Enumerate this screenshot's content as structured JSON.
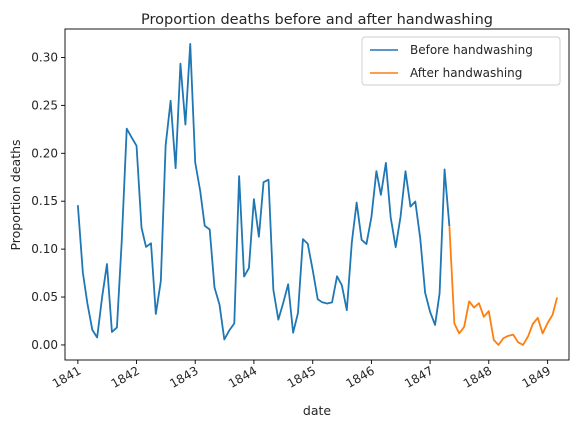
{
  "chart_data": {
    "type": "line",
    "title": "Proportion deaths before and after handwashing",
    "xlabel": "date",
    "ylabel": "Proportion deaths",
    "xlim": [
      "1840-10-13",
      "1849-05-14"
    ],
    "ylim": [
      -0.0157,
      0.3297
    ],
    "yticks": [
      0.0,
      0.05,
      0.1,
      0.15,
      0.2,
      0.25,
      0.3
    ],
    "ytick_labels": [
      "0.00",
      "0.05",
      "0.10",
      "0.15",
      "0.20",
      "0.25",
      "0.30"
    ],
    "xticks": [
      "1841-01-01",
      "1842-01-01",
      "1843-01-01",
      "1844-01-01",
      "1845-01-01",
      "1846-01-01",
      "1847-01-01",
      "1848-01-01",
      "1849-01-01"
    ],
    "xtick_labels": [
      "1841",
      "1842",
      "1843",
      "1844",
      "1845",
      "1846",
      "1847",
      "1848",
      "1849"
    ],
    "legend_position": "top-right",
    "grid": false,
    "series": [
      {
        "name": "Before handwashing",
        "color": "#1f77b4",
        "x": [
          "1841-01-01",
          "1841-02-01",
          "1841-03-01",
          "1841-04-01",
          "1841-05-01",
          "1841-06-01",
          "1841-07-01",
          "1841-08-01",
          "1841-09-01",
          "1841-10-01",
          "1841-11-01",
          "1841-12-01",
          "1842-01-01",
          "1842-02-01",
          "1842-03-01",
          "1842-04-01",
          "1842-05-01",
          "1842-06-01",
          "1842-07-01",
          "1842-08-01",
          "1842-09-01",
          "1842-10-01",
          "1842-11-01",
          "1842-12-01",
          "1843-01-01",
          "1843-02-01",
          "1843-03-01",
          "1843-04-01",
          "1843-05-01",
          "1843-06-01",
          "1843-07-01",
          "1843-08-01",
          "1843-09-01",
          "1843-10-01",
          "1843-11-01",
          "1843-12-01",
          "1844-01-01",
          "1844-02-01",
          "1844-03-01",
          "1844-04-01",
          "1844-05-01",
          "1844-06-01",
          "1844-07-01",
          "1844-08-01",
          "1844-09-01",
          "1844-10-01",
          "1844-11-01",
          "1844-12-01",
          "1845-01-01",
          "1845-02-01",
          "1845-03-01",
          "1845-04-01",
          "1845-05-01",
          "1845-06-01",
          "1845-07-01",
          "1845-08-01",
          "1845-09-01",
          "1845-10-01",
          "1845-11-01",
          "1845-12-01",
          "1846-01-01",
          "1846-02-01",
          "1846-03-01",
          "1846-04-01",
          "1846-05-01",
          "1846-06-01",
          "1846-07-01",
          "1846-08-01",
          "1846-09-01",
          "1846-10-01",
          "1846-11-01",
          "1846-12-01",
          "1847-01-01",
          "1847-02-01",
          "1847-03-01",
          "1847-04-01",
          "1847-05-01"
        ],
        "values": [
          0.1458,
          0.0755,
          0.0436,
          0.0157,
          0.0078,
          0.0501,
          0.0845,
          0.0135,
          0.0183,
          0.1087,
          0.2257,
          0.2167,
          0.2078,
          0.1223,
          0.1023,
          0.1061,
          0.0323,
          0.0666,
          0.2083,
          0.2548,
          0.1845,
          0.2935,
          0.23,
          0.3141,
          0.1904,
          0.1608,
          0.1244,
          0.1205,
          0.06,
          0.0421,
          0.0057,
          0.0152,
          0.0225,
          0.1762,
          0.0714,
          0.0802,
          0.1521,
          0.1129,
          0.1698,
          0.1724,
          0.0576,
          0.0264,
          0.0436,
          0.0633,
          0.0128,
          0.0332,
          0.1104,
          0.1056,
          0.078,
          0.0477,
          0.0445,
          0.0432,
          0.0444,
          0.0716,
          0.0624,
          0.0362,
          0.107,
          0.1486,
          0.1097,
          0.1053,
          0.1335,
          0.1814,
          0.1566,
          0.19,
          0.1329,
          0.1021,
          0.1337,
          0.1813,
          0.1444,
          0.1497,
          0.1107,
          0.0546,
          0.0345,
          0.0209,
          0.0538,
          0.1832,
          0.124
        ]
      },
      {
        "name": "After handwashing",
        "color": "#ff7f0e",
        "x": [
          "1847-06-01",
          "1847-07-01",
          "1847-08-01",
          "1847-09-01",
          "1847-10-01",
          "1847-11-01",
          "1847-12-01",
          "1848-01-01",
          "1848-02-01",
          "1848-03-01",
          "1848-04-01",
          "1848-05-01",
          "1848-06-01",
          "1848-07-01",
          "1848-08-01",
          "1848-09-01",
          "1848-10-01",
          "1848-11-01",
          "1848-12-01",
          "1849-01-01",
          "1849-02-01",
          "1849-03-01"
        ],
        "values": [
          0.0224,
          0.012,
          0.0189,
          0.0455,
          0.039,
          0.0436,
          0.0294,
          0.0353,
          0.0053,
          0.0,
          0.007,
          0.0095,
          0.0108,
          0.0029,
          0.0,
          0.0088,
          0.022,
          0.0283,
          0.012,
          0.0229,
          0.0315,
          0.0496
        ]
      }
    ]
  }
}
